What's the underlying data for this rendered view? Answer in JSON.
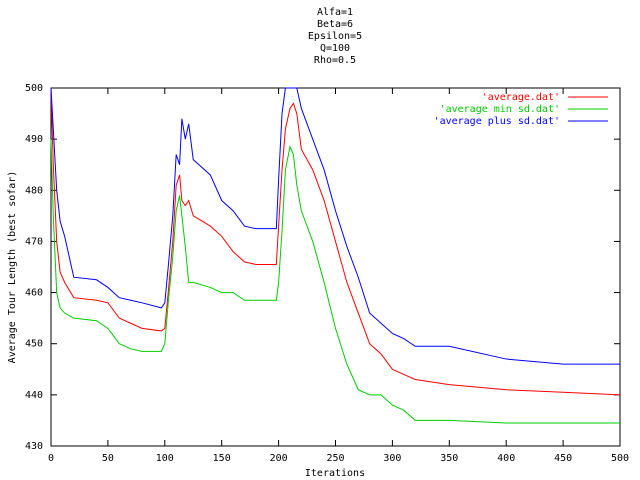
{
  "chart_data": {
    "type": "line",
    "title": [
      "Alfa=1",
      "Beta=6",
      "Epsilon=5",
      "Q=100",
      "Rho=0.5"
    ],
    "x_label": "Iterations",
    "y_label": "Average Tour Length (best sofar)",
    "x": [
      0,
      2,
      5,
      8,
      12,
      20,
      40,
      50,
      60,
      70,
      80,
      97,
      100,
      103,
      107,
      110,
      113,
      115,
      118,
      121,
      125,
      140,
      150,
      160,
      170,
      180,
      198,
      200,
      203,
      206,
      210,
      213,
      216,
      220,
      230,
      240,
      250,
      260,
      270,
      280,
      290,
      300,
      310,
      320,
      350,
      400,
      450,
      500
    ],
    "series": [
      {
        "name": "'average.dat'",
        "color": "#ff0000",
        "values": [
          500,
          485,
          470,
          464,
          462,
          459,
          458.5,
          458,
          455,
          454,
          453,
          452.5,
          453,
          460,
          470,
          481,
          483,
          478,
          477,
          478,
          475,
          473,
          471,
          468,
          466,
          465.5,
          465.5,
          473,
          484,
          492,
          496,
          497,
          495,
          488,
          484,
          478,
          470,
          462,
          456,
          450,
          448,
          445,
          444,
          443,
          442,
          441,
          440.5,
          440
        ]
      },
      {
        "name": "'average min sd.dat'",
        "color": "#00cc00",
        "values": [
          490,
          475,
          460,
          457,
          456,
          455,
          454.5,
          453,
          450,
          449,
          448.5,
          448.5,
          450,
          458,
          467,
          476,
          479,
          475,
          469,
          462,
          462,
          461,
          460,
          460,
          458.5,
          458.5,
          458.5,
          462,
          472,
          484,
          488.5,
          487,
          481,
          476,
          470,
          462,
          453,
          446,
          441,
          440,
          440,
          438,
          437,
          435,
          435,
          434.5,
          434.5,
          434.5
        ]
      },
      {
        "name": "'average plus sd.dat'",
        "color": "#0000ff",
        "values": [
          500,
          492,
          480,
          474,
          471,
          463,
          462.5,
          461,
          459,
          458.5,
          458,
          457,
          458,
          465,
          475,
          487,
          485,
          494,
          490,
          493,
          486,
          483,
          478,
          476,
          473,
          472.5,
          472.5,
          482,
          495,
          500,
          500,
          500,
          500,
          496,
          490,
          484,
          476,
          469,
          463,
          456,
          454,
          452,
          451,
          449.5,
          449.5,
          447,
          446,
          446
        ]
      }
    ],
    "xlim": [
      0,
      500
    ],
    "xticks": [
      0,
      50,
      100,
      150,
      200,
      250,
      300,
      350,
      400,
      450,
      500
    ],
    "ylim": [
      430,
      500
    ],
    "yticks": [
      430,
      440,
      450,
      460,
      470,
      480,
      490,
      500
    ],
    "legend": "top right"
  }
}
